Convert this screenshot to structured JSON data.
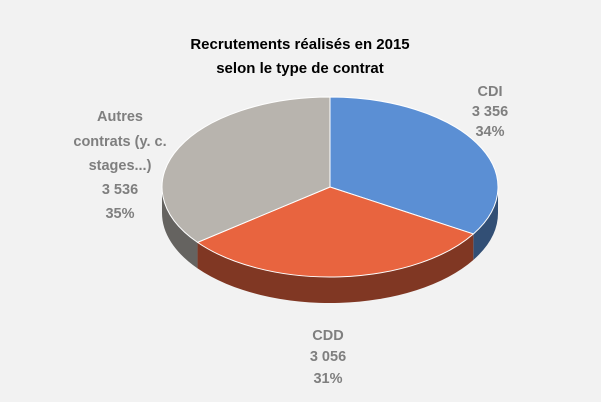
{
  "chart_data": {
    "type": "pie",
    "title_lines": [
      "Recrutements réalisés en 2015",
      "selon le type de contrat"
    ],
    "slices": [
      {
        "label_lines": [
          "CDI"
        ],
        "value": 3356,
        "value_text": "3 356",
        "percent_text": "34%",
        "color": "#5b8fd4"
      },
      {
        "label_lines": [
          "CDD"
        ],
        "value": 3056,
        "value_text": "3 056",
        "percent_text": "31%",
        "color": "#e8643f"
      },
      {
        "label_lines": [
          "Autres",
          "contrats (y. c.",
          "stages...)"
        ],
        "value": 3536,
        "value_text": "3 536",
        "percent_text": "35%",
        "color": "#b8b4ae"
      }
    ],
    "style": "3d-tilted",
    "legend": "none"
  }
}
